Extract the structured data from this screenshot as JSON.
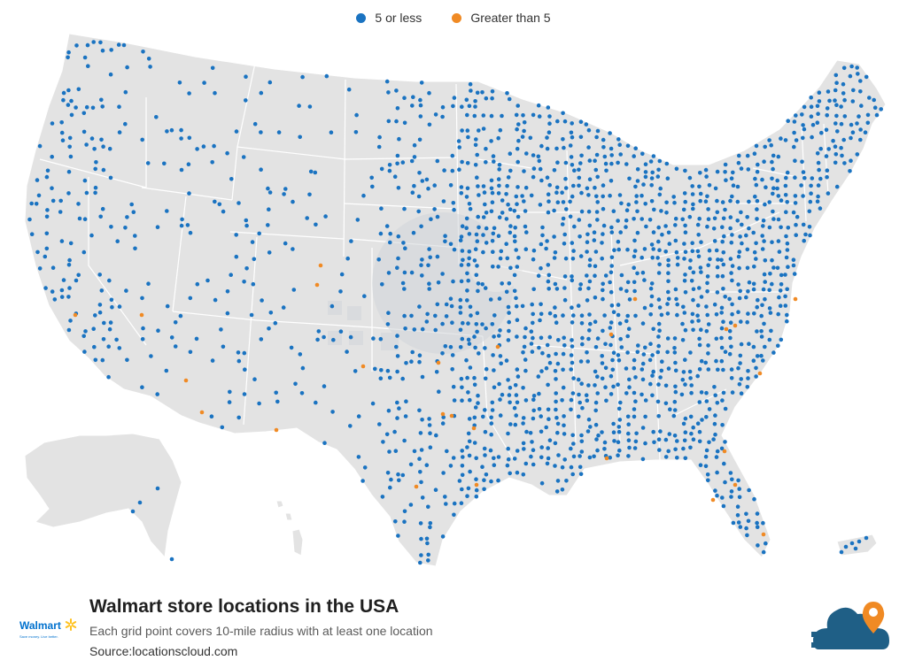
{
  "legend": {
    "items": [
      {
        "label": "5 or less",
        "color": "#1a73c1"
      },
      {
        "label": "Greater than 5",
        "color": "#f08a24"
      }
    ]
  },
  "map": {
    "land_color": "#e3e3e3",
    "border_color": "#ffffff",
    "watermark_color": "#d2d6da"
  },
  "footer": {
    "title": "Walmart store locations in the USA",
    "subtitle": "Each grid point covers 10-mile radius with at least one location",
    "source": "Source:locationscloud.com"
  },
  "logos": {
    "walmart": {
      "word": "Walmart",
      "tagline": "Save money. Live better.",
      "color": "#0071ce",
      "spark_color": "#ffc220"
    },
    "locationscloud": {
      "cloud_color": "#1f5f86",
      "pin_color": "#f08a24",
      "icon": "cloud-pin-icon"
    }
  }
}
